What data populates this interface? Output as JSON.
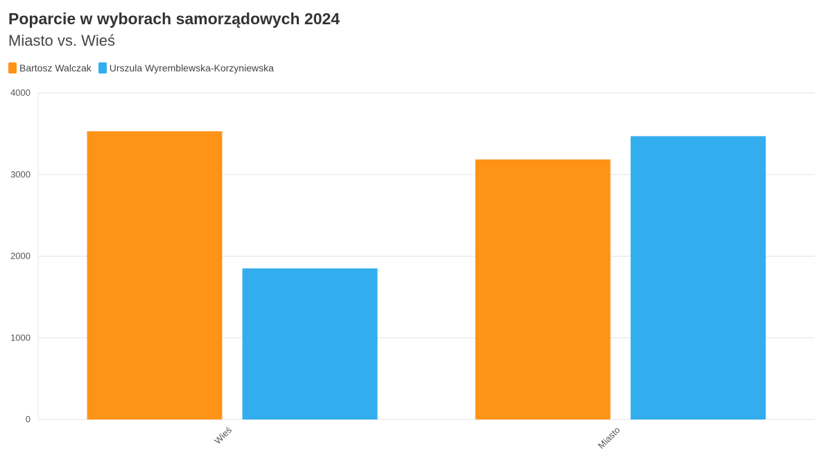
{
  "chart_data": {
    "type": "bar",
    "title": "Poparcie w wyborach samorządowych 2024",
    "subtitle": "Miasto vs. Wieś",
    "categories": [
      "Wieś",
      "Miasto"
    ],
    "series": [
      {
        "name": "Bartosz Walczak",
        "color": "#FF9318",
        "values": [
          3530,
          3185
        ]
      },
      {
        "name": "Urszula Wyremblewska-Korzyniewska",
        "color": "#32AEEE",
        "values": [
          1850,
          3470
        ]
      }
    ],
    "xlabel": "",
    "ylabel": "",
    "ylim": [
      0,
      4000
    ],
    "yticks": [
      "0",
      "1000",
      "2000",
      "3000",
      "4000"
    ],
    "grid": true,
    "legend_position": "top-left"
  }
}
